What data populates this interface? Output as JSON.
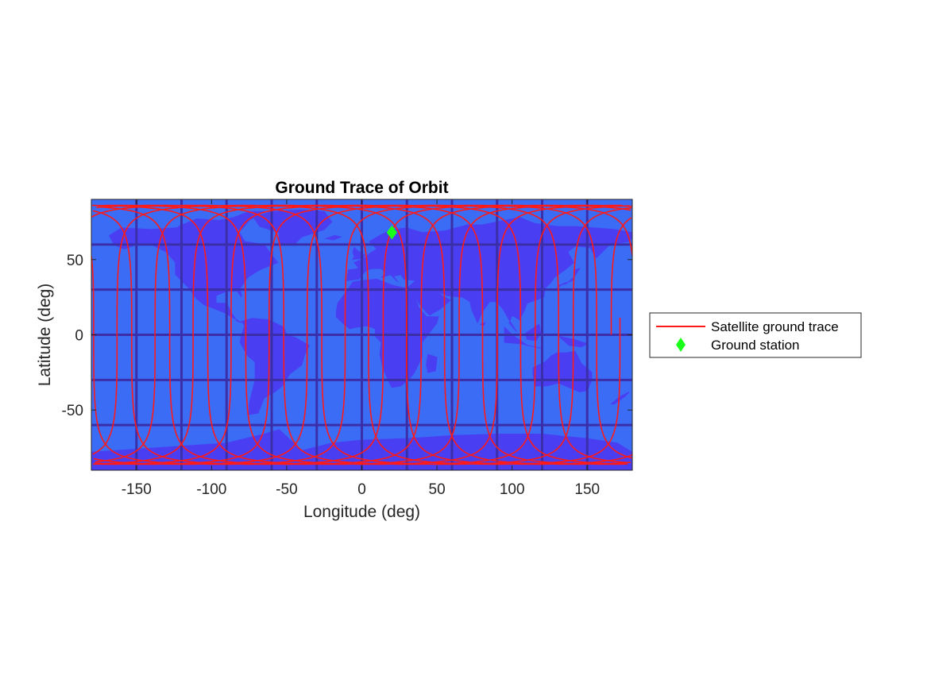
{
  "chart_data": {
    "type": "line",
    "title": "Ground Trace of Orbit",
    "xlabel": "Longitude (deg)",
    "ylabel": "Latitude (deg)",
    "xlim": [
      -180,
      180
    ],
    "ylim": [
      -90,
      90
    ],
    "xticks": [
      -150,
      -100,
      -50,
      0,
      50,
      100,
      150
    ],
    "yticks": [
      -50,
      0,
      50
    ],
    "grid": true,
    "background": "world map",
    "colors": {
      "ocean": "#3b6cf6",
      "land": "#4a3ef2",
      "grid_line": "#3a2fa8",
      "trace": "#ff1a1a",
      "station": "#1aff1a",
      "axes_box": "#262626"
    },
    "series": [
      {
        "name": "Satellite ground trace",
        "kind": "line",
        "inclination_deg": 86,
        "lon_shift_per_rev_deg": -25.3,
        "start_lon_deg": 166,
        "start_lat_deg": 0,
        "end_lon_deg": 171,
        "end_lat_deg": 0
      },
      {
        "name": "Ground station",
        "kind": "marker",
        "marker": "diamond",
        "lon": 20,
        "lat": 68
      }
    ],
    "legend": {
      "placement": "east-outside",
      "entries": [
        "Satellite ground trace",
        "Ground station"
      ]
    }
  }
}
